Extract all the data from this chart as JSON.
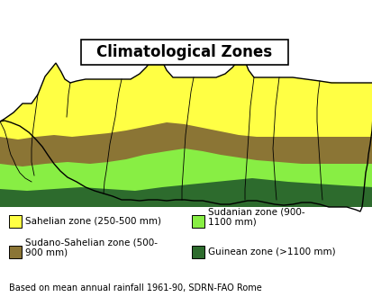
{
  "title": "Climatological Zones",
  "background_color": "#ffffff",
  "border_color": "#000000",
  "zone_colors": {
    "sahelian": "#ffff44",
    "sudano": "#8b7535",
    "sudanian": "#88ee44",
    "guinean": "#2d6b2d"
  },
  "legend": [
    {
      "label": "Sahelian zone (250-500 mm)",
      "color": "#ffff44",
      "col": 0
    },
    {
      "label": "Sudano-Sahelian zone (500-\n900 mm)",
      "color": "#8b7535",
      "col": 0
    },
    {
      "label": "Sudanian zone (900-\n1100 mm)",
      "color": "#88ee44",
      "col": 1
    },
    {
      "label": "Guinean zone (>1100 mm)",
      "color": "#2d6b2d",
      "col": 1
    }
  ],
  "footnote": "Based on mean annual rainfall 1961-90, SDRN-FAO Rome",
  "title_fontsize": 12,
  "legend_fontsize": 7.5,
  "footnote_fontsize": 7.0,
  "fig_width": 4.14,
  "fig_height": 3.3,
  "dpi": 100
}
